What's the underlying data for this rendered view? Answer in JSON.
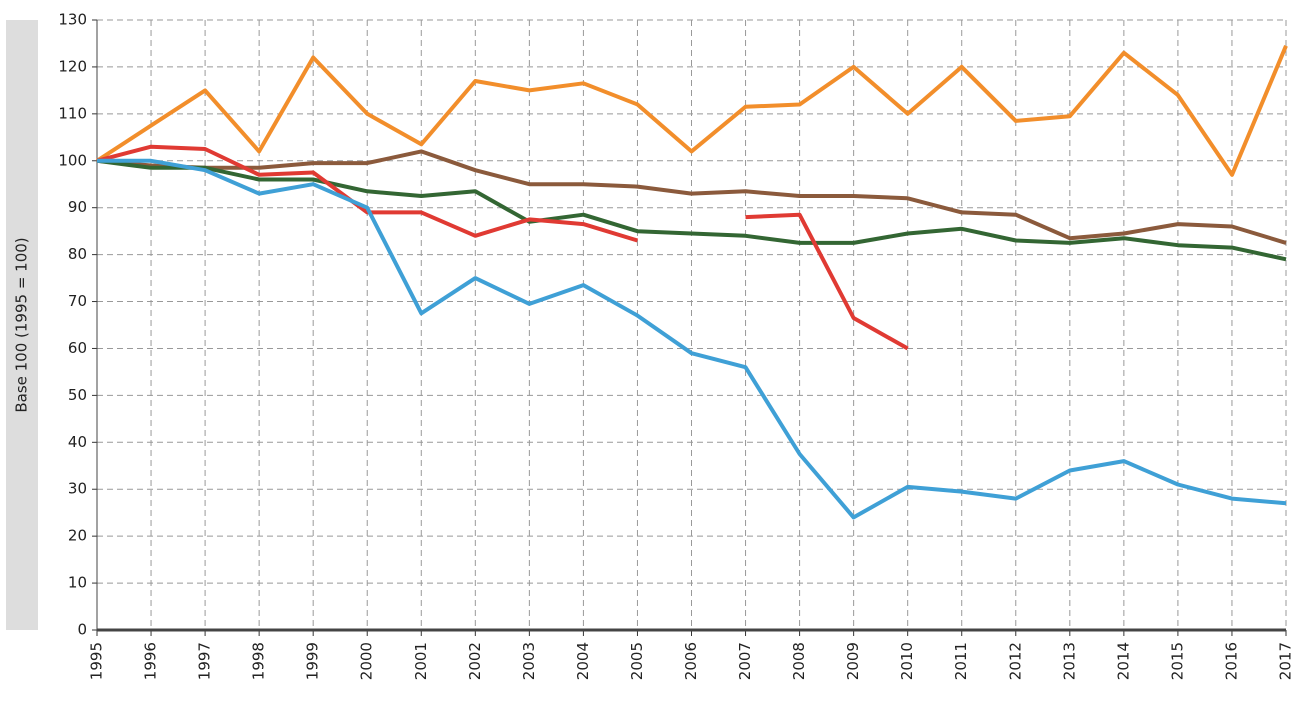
{
  "chart_data": {
    "type": "line",
    "y_label": "Base 100 (1995 = 100)",
    "categories": [
      "1995",
      "1996",
      "1997",
      "1998",
      "1999",
      "2000",
      "2001",
      "2002",
      "2003",
      "2004",
      "2005",
      "2006",
      "2007",
      "2008",
      "2009",
      "2010",
      "2011",
      "2012",
      "2013",
      "2014",
      "2015",
      "2016",
      "2017"
    ],
    "series": [
      {
        "color": "#f28e2b",
        "values": [
          100,
          107.5,
          115,
          102,
          122,
          110,
          103.5,
          117,
          115,
          116.5,
          112,
          102,
          111.5,
          112,
          120,
          110,
          120,
          108.5,
          109.5,
          123,
          114,
          97,
          124.5
        ]
      },
      {
        "color": "#8b5a3c",
        "values": [
          100,
          99,
          98.5,
          98.5,
          99.5,
          99.5,
          102,
          98,
          95,
          95,
          94.5,
          93,
          93.5,
          92.5,
          92.5,
          92,
          89,
          88.5,
          83.5,
          84.5,
          86.5,
          86,
          82.5
        ]
      },
      {
        "color": "#336633",
        "values": [
          100,
          98.5,
          98.5,
          96,
          96,
          93.5,
          92.5,
          93.5,
          87,
          88.5,
          85,
          84.5,
          84,
          82.5,
          82.5,
          84.5,
          85.5,
          83,
          82.5,
          83.5,
          82,
          81.5,
          79
        ]
      },
      {
        "color": "#e03a33",
        "values": [
          100,
          103,
          102.5,
          97,
          97.5,
          89,
          89,
          84,
          87.5,
          86.5,
          83,
          null,
          88,
          88.5,
          66.5,
          60,
          null,
          null,
          null,
          null,
          null,
          null,
          null
        ]
      },
      {
        "color": "#3fa0d6",
        "values": [
          100,
          100,
          98,
          93,
          95,
          90,
          67.5,
          75,
          69.5,
          73.5,
          67,
          59,
          56,
          37.5,
          24,
          30.5,
          29.5,
          28,
          34,
          36,
          31,
          28,
          27
        ]
      }
    ],
    "ylim": [
      0,
      130
    ],
    "yticks": [
      0,
      10,
      20,
      30,
      40,
      50,
      60,
      70,
      80,
      90,
      100,
      110,
      120,
      130
    ],
    "grid": true
  }
}
